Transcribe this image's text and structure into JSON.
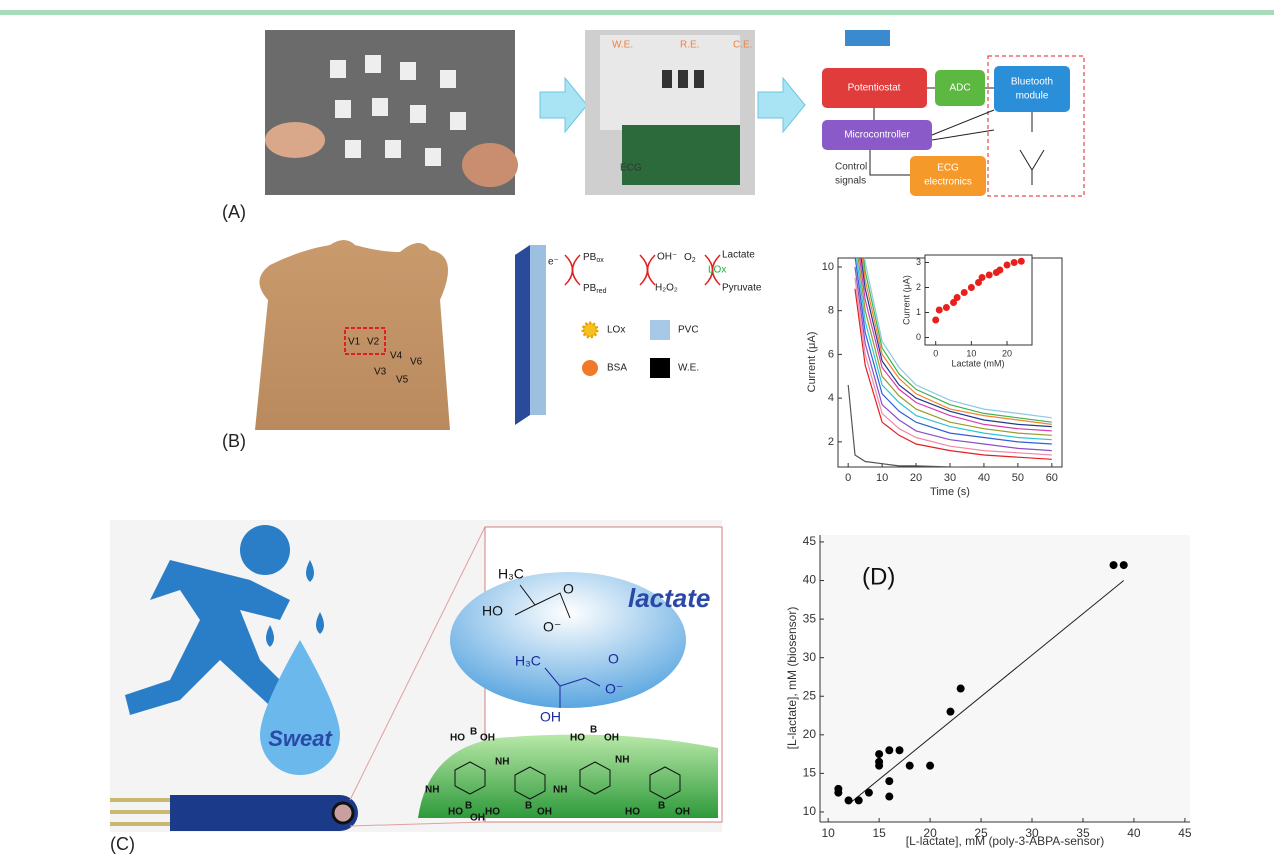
{
  "panel_labels": [
    "(A)",
    "(B)",
    "(C)"
  ],
  "panel_a": {
    "electrodes": [
      "W.E.",
      "R.E.",
      "C.E."
    ],
    "ecg_label": "ECG",
    "blocks": [
      "Potentiostat",
      "ADC",
      "Bluetooth",
      "module",
      "Microcontroller",
      "ECG",
      "electronics"
    ],
    "control_label": [
      "Control",
      "signals"
    ]
  },
  "panel_b": {
    "leads": [
      "V1",
      "V2",
      "V3",
      "V4",
      "V5",
      "V6"
    ],
    "pb_ox": [
      "PB",
      "ox"
    ],
    "pb_red": [
      "PB",
      "red"
    ],
    "oh": "OH⁻",
    "o2": [
      "O",
      "2"
    ],
    "h2o2": "H₂O₂",
    "lactate": "Lactate",
    "lox": "LOx",
    "pyruvate": "Pyruvate",
    "electron": "e⁻",
    "legend": [
      "LOx",
      "PVC",
      "BSA",
      "W.E."
    ]
  },
  "panel_c": {
    "sweat": "Sweat",
    "lactate": "lactate",
    "molecule_labels": [
      "H₃C",
      "HO",
      "O",
      "O⁻",
      "H₃C",
      "O",
      "O⁻",
      "OH"
    ],
    "polymer_labels": [
      "HO",
      "B",
      "OH",
      "NH",
      "NH",
      "HO",
      "B",
      "OH",
      "NH",
      "HO",
      "B",
      "OH",
      "NH",
      "HO",
      "B",
      "OH",
      "HO",
      "B",
      "OH"
    ]
  },
  "chart_data": [
    {
      "type": "line",
      "ylabel": "Current (μA)",
      "xlabel": "Time (s)",
      "x": [
        0,
        2,
        5,
        10,
        15,
        20,
        30,
        40,
        50,
        60
      ],
      "xlim": [
        -3,
        63
      ],
      "ylim": [
        0.85,
        10.41
      ],
      "xticks": [
        0,
        10,
        20,
        30,
        40,
        50,
        60
      ],
      "yticks": [
        2,
        4,
        6,
        8,
        10
      ],
      "series": [
        {
          "color": "#8fc6e8",
          "values": [
            null,
            14,
            10.2,
            6.6,
            5.4,
            4.6,
            3.9,
            3.5,
            3.3,
            3.1
          ]
        },
        {
          "color": "#3cb44b",
          "values": [
            null,
            13.5,
            9.8,
            6.3,
            5.1,
            4.4,
            3.7,
            3.3,
            3.1,
            2.9
          ]
        },
        {
          "color": "#f58231",
          "values": [
            null,
            13,
            9.4,
            6.0,
            4.9,
            4.2,
            3.5,
            3.2,
            3.0,
            2.8
          ]
        },
        {
          "color": "#1f3b8c",
          "values": [
            null,
            12.5,
            9,
            5.7,
            4.6,
            4.0,
            3.4,
            3.0,
            2.8,
            2.7
          ]
        },
        {
          "color": "#d63cb4",
          "values": [
            null,
            12,
            8.5,
            5.4,
            4.4,
            3.8,
            3.2,
            2.8,
            2.6,
            2.5
          ]
        },
        {
          "color": "#9a9a2a",
          "values": [
            null,
            11.5,
            8,
            5.0,
            4.1,
            3.5,
            2.9,
            2.6,
            2.4,
            2.3
          ]
        },
        {
          "color": "#2ec4d6",
          "values": [
            null,
            11,
            7.5,
            4.6,
            3.8,
            3.2,
            2.7,
            2.4,
            2.2,
            2.1
          ]
        },
        {
          "color": "#3060d8",
          "values": [
            null,
            10.5,
            7,
            4.2,
            3.4,
            2.9,
            2.4,
            2.2,
            2.0,
            1.9
          ]
        },
        {
          "color": "#8a4fc8",
          "values": [
            null,
            10,
            6.5,
            3.7,
            3.0,
            2.5,
            2.1,
            1.9,
            1.7,
            1.6
          ]
        },
        {
          "color": "#f08aa8",
          "values": [
            null,
            9.5,
            6,
            3.3,
            2.6,
            2.2,
            1.8,
            1.6,
            1.5,
            1.4
          ]
        },
        {
          "color": "#e02020",
          "values": [
            null,
            9,
            5.5,
            2.9,
            2.3,
            1.9,
            1.6,
            1.4,
            1.3,
            1.2
          ]
        },
        {
          "color": "#555555",
          "values": [
            4.6,
            1.4,
            1.1,
            1.0,
            0.9,
            0.9,
            0.85,
            0.8,
            0.8,
            0.8
          ]
        }
      ]
    },
    {
      "type": "scatter",
      "ylabel": "Current (μA)",
      "xlabel": "Lactate (mM)",
      "xlim": [
        -3,
        27
      ],
      "ylim": [
        -0.3,
        3.3
      ],
      "xticks": [
        0,
        10,
        20
      ],
      "yticks": [
        0,
        1,
        2,
        3
      ],
      "series": [
        {
          "color": "#e8201c",
          "x": [
            0,
            1,
            3,
            5,
            6,
            8,
            10,
            12,
            13,
            15,
            17,
            18,
            20,
            22,
            24
          ],
          "values": [
            0.7,
            1.1,
            1.2,
            1.4,
            1.6,
            1.8,
            2.0,
            2.2,
            2.4,
            2.5,
            2.6,
            2.7,
            2.9,
            3.0,
            3.05
          ]
        }
      ]
    },
    {
      "type": "scatter",
      "annotation": "(D)",
      "ylabel": "[L-lactate], mM (biosensor)",
      "xlabel": "[L-lactate], mM (poly-3-ABPA-sensor)",
      "xlim": [
        9.2,
        45.5
      ],
      "ylim": [
        8.7,
        45.9
      ],
      "xticks": [
        10,
        15,
        20,
        25,
        30,
        35,
        40,
        45
      ],
      "yticks": [
        10,
        15,
        20,
        25,
        30,
        35,
        40,
        45
      ],
      "series": [
        {
          "color": "#000000",
          "x": [
            11,
            11,
            12,
            13,
            14,
            15,
            15,
            15,
            16,
            16,
            16,
            17,
            18,
            20,
            22,
            23,
            38,
            39
          ],
          "values": [
            13,
            12.5,
            11.5,
            11.5,
            12.5,
            17.5,
            16.5,
            16,
            18,
            14,
            12,
            18,
            16,
            16,
            23,
            26,
            42,
            42
          ]
        }
      ],
      "fit_line": {
        "x": [
          12,
          39
        ],
        "y": [
          11,
          40
        ]
      }
    }
  ]
}
